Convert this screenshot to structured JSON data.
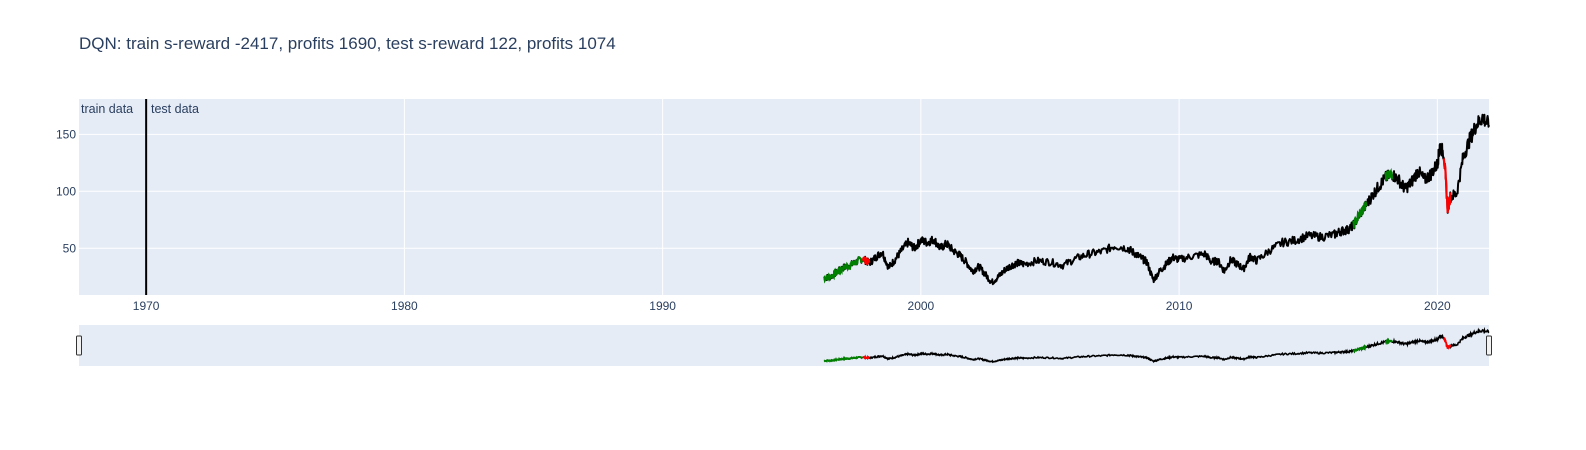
{
  "chart_data": {
    "type": "line",
    "title": "DQN: train s-reward -2417, profits 1690, test s-reward 122, profits 1074",
    "xlabel": "",
    "ylabel": "",
    "x_range": [
      1967.4,
      2022.0
    ],
    "y_range": [
      9,
      181
    ],
    "x_ticks": [
      1970,
      1980,
      1990,
      2000,
      2010,
      2020
    ],
    "y_ticks": [
      50,
      100,
      150
    ],
    "grid": true,
    "rangeslider": true,
    "split_line_x": 1970.0,
    "annotations": [
      "train data",
      "test data"
    ],
    "colors": {
      "price": "#000000",
      "buy": "#008000",
      "sell": "#ff0000",
      "plot_bg": "#e5ecf6",
      "grid": "#ffffff",
      "text": "#2a3f5f"
    },
    "series": [
      {
        "x": [
          1996.25,
          1996.5,
          1996.75,
          1997.0,
          1997.25,
          1997.5,
          1997.75,
          1998.0,
          1998.25,
          1998.5,
          1998.75,
          1999.0,
          1999.25,
          1999.5,
          1999.75,
          2000.0,
          2000.25,
          2000.5,
          2000.75,
          2001.0,
          2001.25,
          2001.5,
          2001.75,
          2002.0,
          2002.25,
          2002.5,
          2002.75,
          2003.0,
          2003.25,
          2003.5,
          2003.75,
          2004.0,
          2004.5,
          2005.0,
          2005.5,
          2006.0,
          2006.5,
          2007.0,
          2007.5,
          2008.0,
          2008.25,
          2008.5,
          2008.75,
          2009.0,
          2009.25,
          2009.5,
          2009.75,
          2010.0,
          2010.5,
          2011.0,
          2011.25,
          2011.5,
          2011.75,
          2012.0,
          2012.25,
          2012.5,
          2012.75,
          2013.0,
          2013.5,
          2014.0,
          2014.5,
          2015.0,
          2015.5,
          2016.0,
          2016.25,
          2016.5,
          2016.75,
          2017.0,
          2017.25,
          2017.5,
          2017.75,
          2018.0,
          2018.25,
          2018.5,
          2018.75,
          2019.0,
          2019.25,
          2019.5,
          2019.75,
          2020.0,
          2020.1,
          2020.25,
          2020.4,
          2020.5,
          2020.75,
          2021.0,
          2021.25,
          2021.5,
          2021.75,
          2022.0
        ],
        "y": [
          24,
          25,
          29,
          33,
          35,
          38,
          41,
          37,
          42,
          47,
          33,
          40,
          48,
          55,
          50,
          57,
          55,
          58,
          50,
          54,
          48,
          44,
          38,
          30,
          34,
          27,
          20,
          25,
          31,
          35,
          37,
          36,
          39,
          38,
          35,
          41,
          45,
          47,
          52,
          50,
          46,
          42,
          38,
          22,
          30,
          36,
          42,
          40,
          43,
          45,
          38,
          39,
          30,
          40,
          36,
          32,
          43,
          39,
          48,
          55,
          57,
          61,
          60,
          62,
          65,
          66,
          70,
          80,
          88,
          97,
          105,
          112,
          115,
          110,
          102,
          108,
          118,
          110,
          115,
          124,
          140,
          133,
          85,
          95,
          98,
          130,
          145,
          158,
          165,
          158
        ],
        "actions": [
          {
            "x": [
              1996.25,
              1996.5,
              1996.75,
              1997.0,
              1997.25,
              1997.5,
              1997.75
            ],
            "type": "buy"
          },
          {
            "x": [
              2016.75,
              2017.0,
              2017.25
            ],
            "type": "buy"
          },
          {
            "x": [
              2018.0,
              2018.25
            ],
            "type": "buy"
          },
          {
            "x": [
              1997.75,
              1998.0
            ],
            "type": "sell"
          },
          {
            "x": [
              2020.25,
              2020.4,
              2020.5
            ],
            "type": "sell"
          }
        ]
      }
    ]
  }
}
